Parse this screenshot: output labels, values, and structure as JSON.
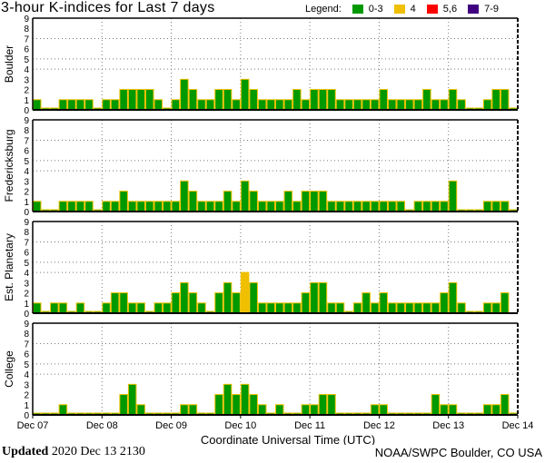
{
  "header": {
    "title": "3-hour K-indices for Last 7 days",
    "legend_label": "Legend:"
  },
  "legend": [
    {
      "label": "0-3",
      "color": "#009900"
    },
    {
      "label": "4",
      "color": "#f0c000"
    },
    {
      "label": "5,6",
      "color": "#ff0000"
    },
    {
      "label": "7-9",
      "color": "#400080"
    }
  ],
  "footer": {
    "updated_label": "Updated",
    "updated_value": "2020 Dec 13 2130",
    "credit": "NOAA/SWPC Boulder, CO USA"
  },
  "chart_data": {
    "type": "bar",
    "title": "3-hour K-indices for Last 7 days",
    "xlabel": "Coordinate Universal Time (UTC)",
    "x_ticks": [
      "Dec 07",
      "Dec 08",
      "Dec 09",
      "Dec 10",
      "Dec 11",
      "Dec 12",
      "Dec 13",
      "Dec 14"
    ],
    "ylim": [
      0,
      9
    ],
    "y_ticks": [
      "0",
      "1",
      "2",
      "3",
      "4",
      "5",
      "6",
      "7",
      "8",
      "9"
    ],
    "gridlines_y": [
      4,
      5,
      7
    ],
    "bar_border_color": "#f0c000",
    "legend_position": "top-right",
    "series": [
      {
        "name": "Boulder",
        "values": [
          1,
          0,
          0,
          1,
          1,
          1,
          1,
          0,
          1,
          1,
          2,
          2,
          2,
          2,
          1,
          0,
          1,
          3,
          2,
          1,
          1,
          2,
          2,
          1,
          3,
          2,
          1,
          1,
          1,
          1,
          2,
          1,
          2,
          2,
          2,
          1,
          1,
          1,
          1,
          1,
          2,
          1,
          1,
          1,
          1,
          2,
          1,
          1,
          2,
          1,
          0,
          0,
          1,
          2,
          2,
          0
        ]
      },
      {
        "name": "Fredericksburg",
        "values": [
          1,
          0,
          0,
          1,
          1,
          1,
          1,
          0,
          1,
          1,
          2,
          1,
          1,
          1,
          1,
          1,
          1,
          3,
          2,
          1,
          1,
          1,
          2,
          1,
          3,
          2,
          1,
          1,
          1,
          2,
          1,
          2,
          2,
          2,
          1,
          1,
          1,
          1,
          1,
          1,
          1,
          1,
          1,
          0,
          1,
          1,
          1,
          1,
          3,
          0,
          0,
          0,
          1,
          1,
          1,
          0
        ]
      },
      {
        "name": "Est. Planetary",
        "values": [
          1,
          0,
          1,
          1,
          0,
          1,
          0,
          0,
          1,
          2,
          2,
          1,
          1,
          0,
          1,
          1,
          2,
          3,
          2,
          1,
          0,
          2,
          3,
          2,
          4,
          3,
          1,
          1,
          1,
          1,
          1,
          2,
          3,
          3,
          1,
          1,
          0,
          1,
          2,
          1,
          2,
          1,
          1,
          1,
          1,
          1,
          1,
          2,
          3,
          1,
          0,
          0,
          1,
          1,
          2,
          null
        ]
      },
      {
        "name": "College",
        "values": [
          0,
          0,
          0,
          1,
          0,
          0,
          0,
          0,
          0,
          0,
          2,
          3,
          1,
          0,
          0,
          0,
          0,
          1,
          1,
          0,
          0,
          2,
          3,
          2,
          3,
          2,
          1,
          0,
          1,
          0,
          0,
          1,
          1,
          2,
          2,
          0,
          0,
          0,
          0,
          1,
          1,
          0,
          0,
          0,
          0,
          0,
          2,
          1,
          1,
          0,
          0,
          0,
          1,
          1,
          2,
          0
        ]
      }
    ]
  }
}
